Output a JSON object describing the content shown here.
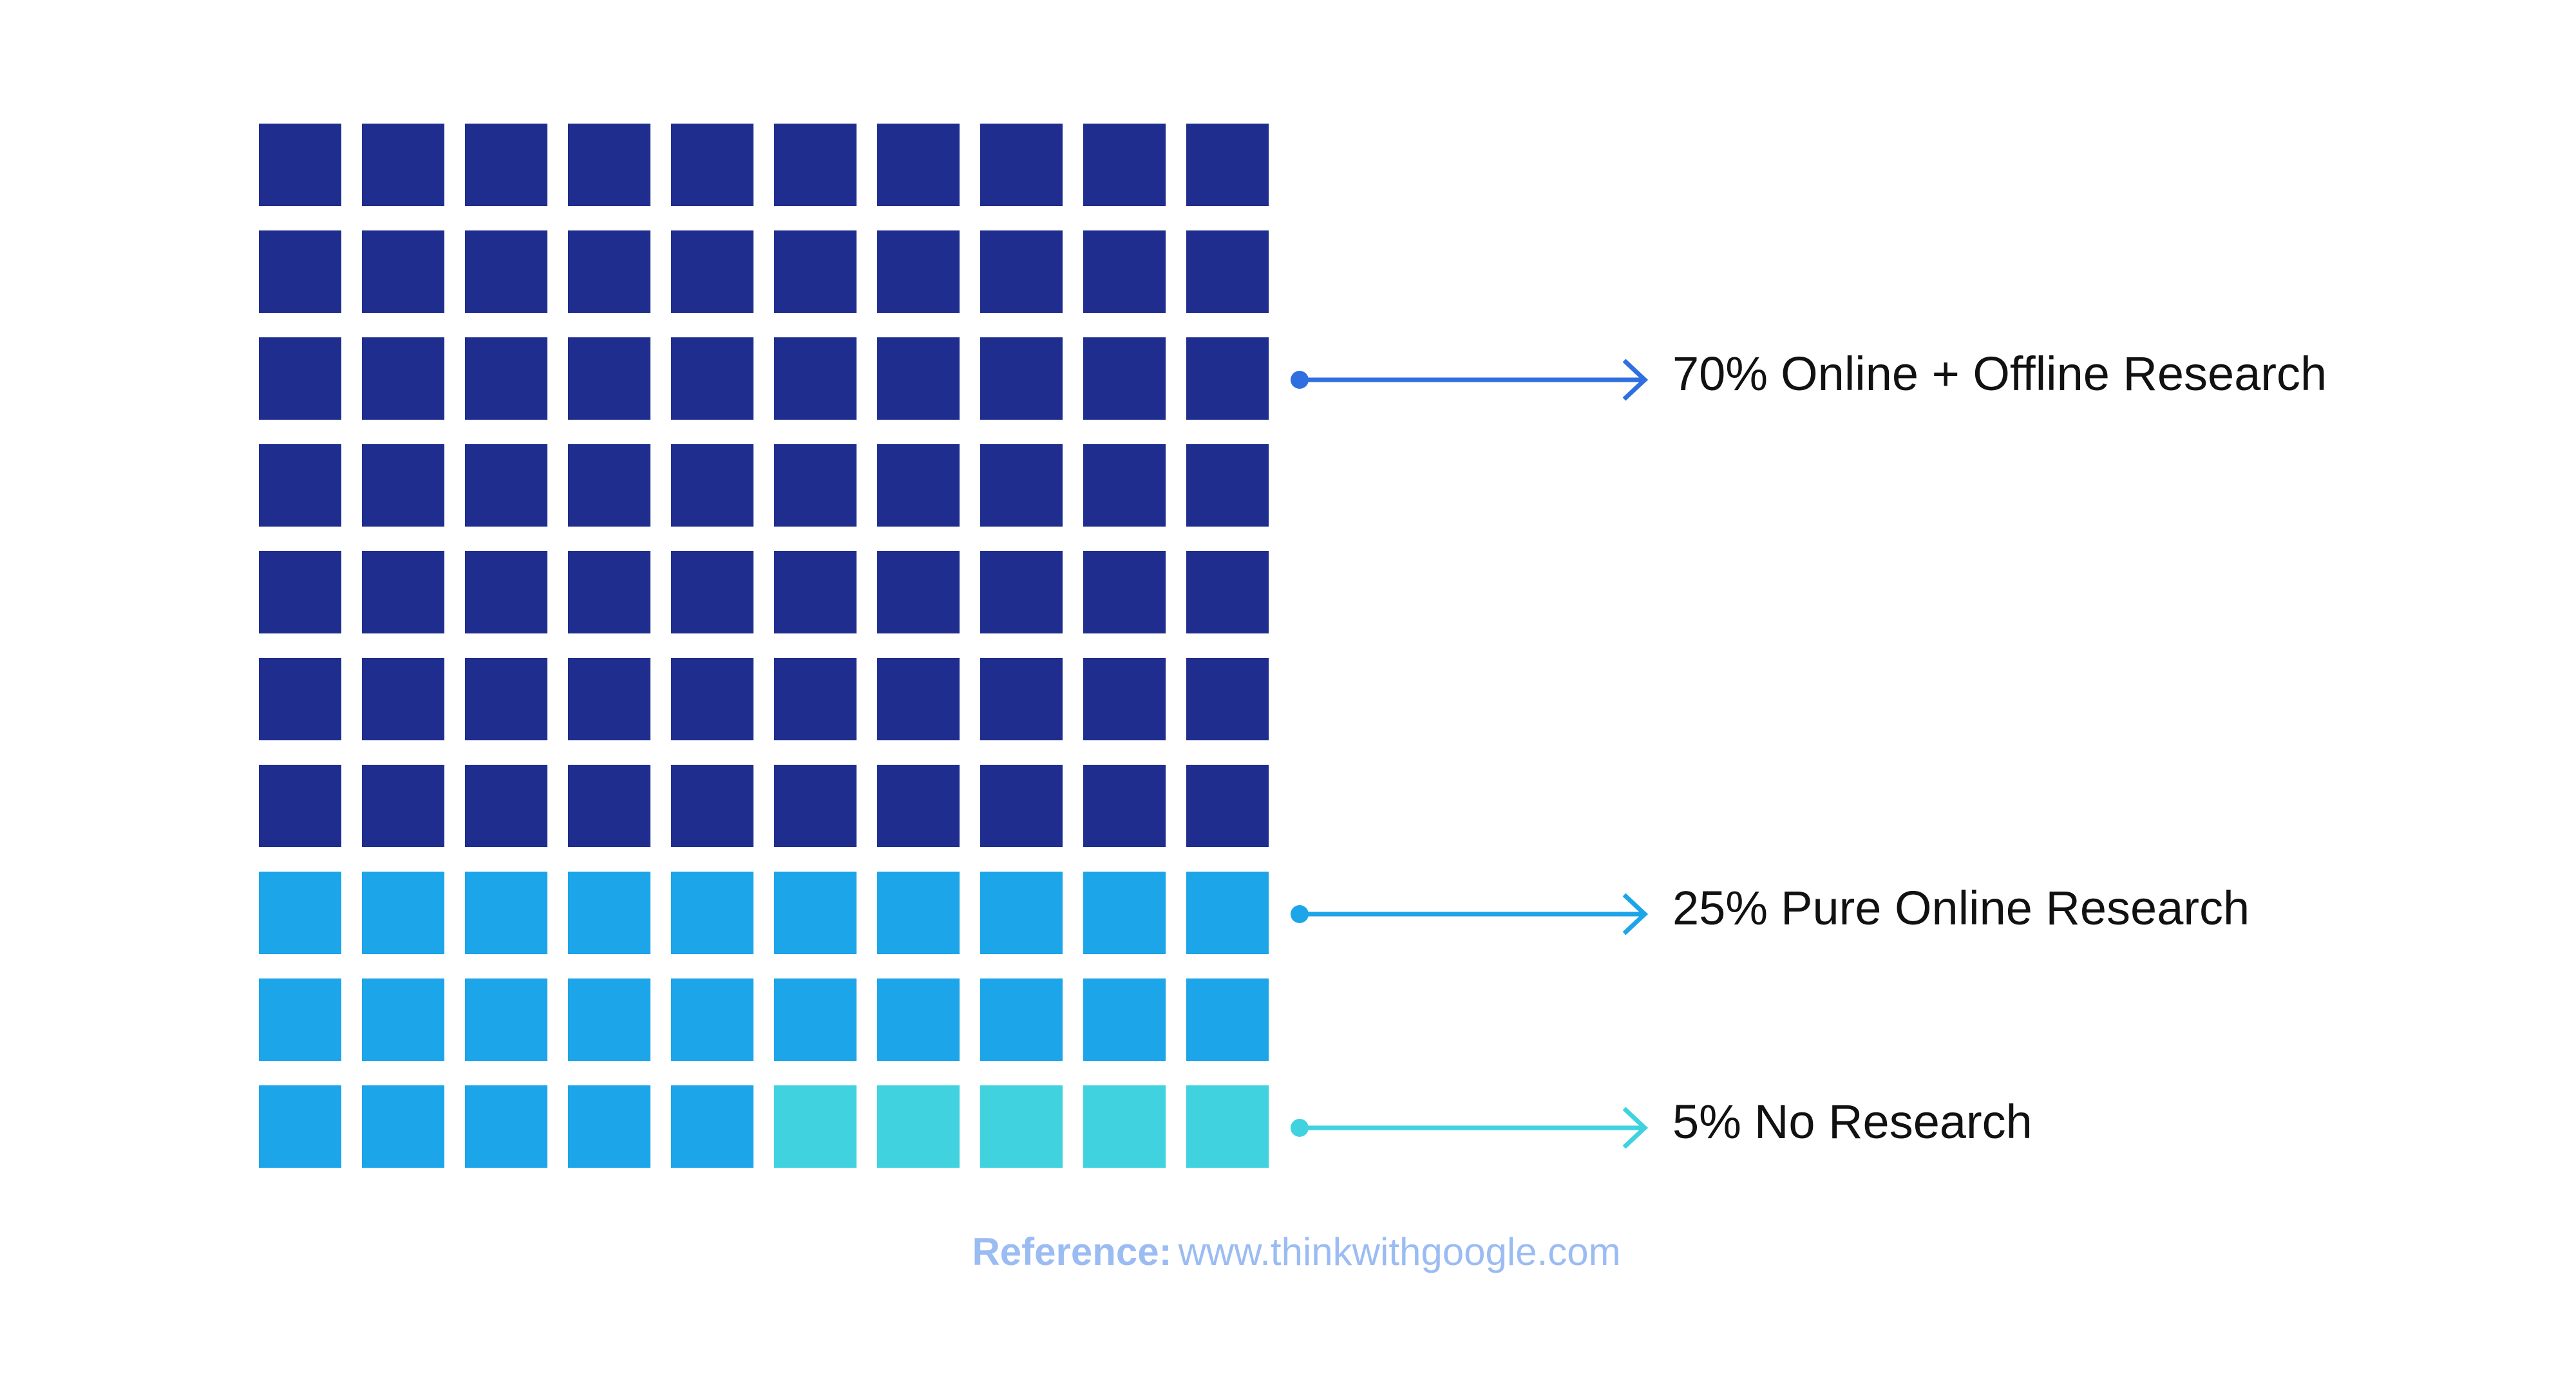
{
  "chart_data": {
    "type": "waffle",
    "categories": [
      "Online + Offline Research",
      "Pure Online Research",
      "No Research"
    ],
    "values": [
      70,
      25,
      5
    ],
    "value_labels": [
      "70%",
      "25%",
      "5%"
    ],
    "colors": [
      "#1f2d8f",
      "#1ca5e8",
      "#41d2e0"
    ],
    "arrow_colors": [
      "#2f6fe0",
      "#1ca5e8",
      "#41d2e0"
    ],
    "reference": {
      "label": "Reference:",
      "url": "www.thinkwithgoogle.com"
    }
  }
}
